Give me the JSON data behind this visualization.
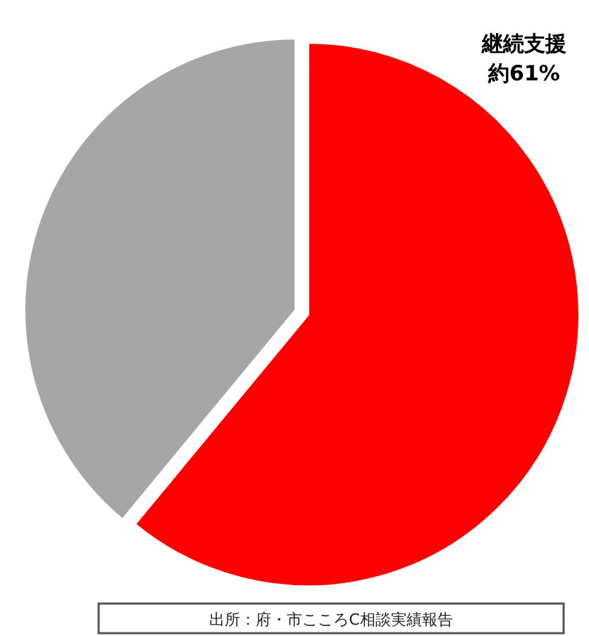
{
  "chart_data": {
    "type": "pie",
    "categories": [
      "継続支援",
      null
    ],
    "values": [
      61,
      39
    ],
    "value_labels": [
      "約61%",
      null
    ],
    "colors": [
      "#ff0000",
      "#a6a6a6"
    ],
    "annotations": [
      "出所：府・市こころC相談実績報告"
    ]
  }
}
